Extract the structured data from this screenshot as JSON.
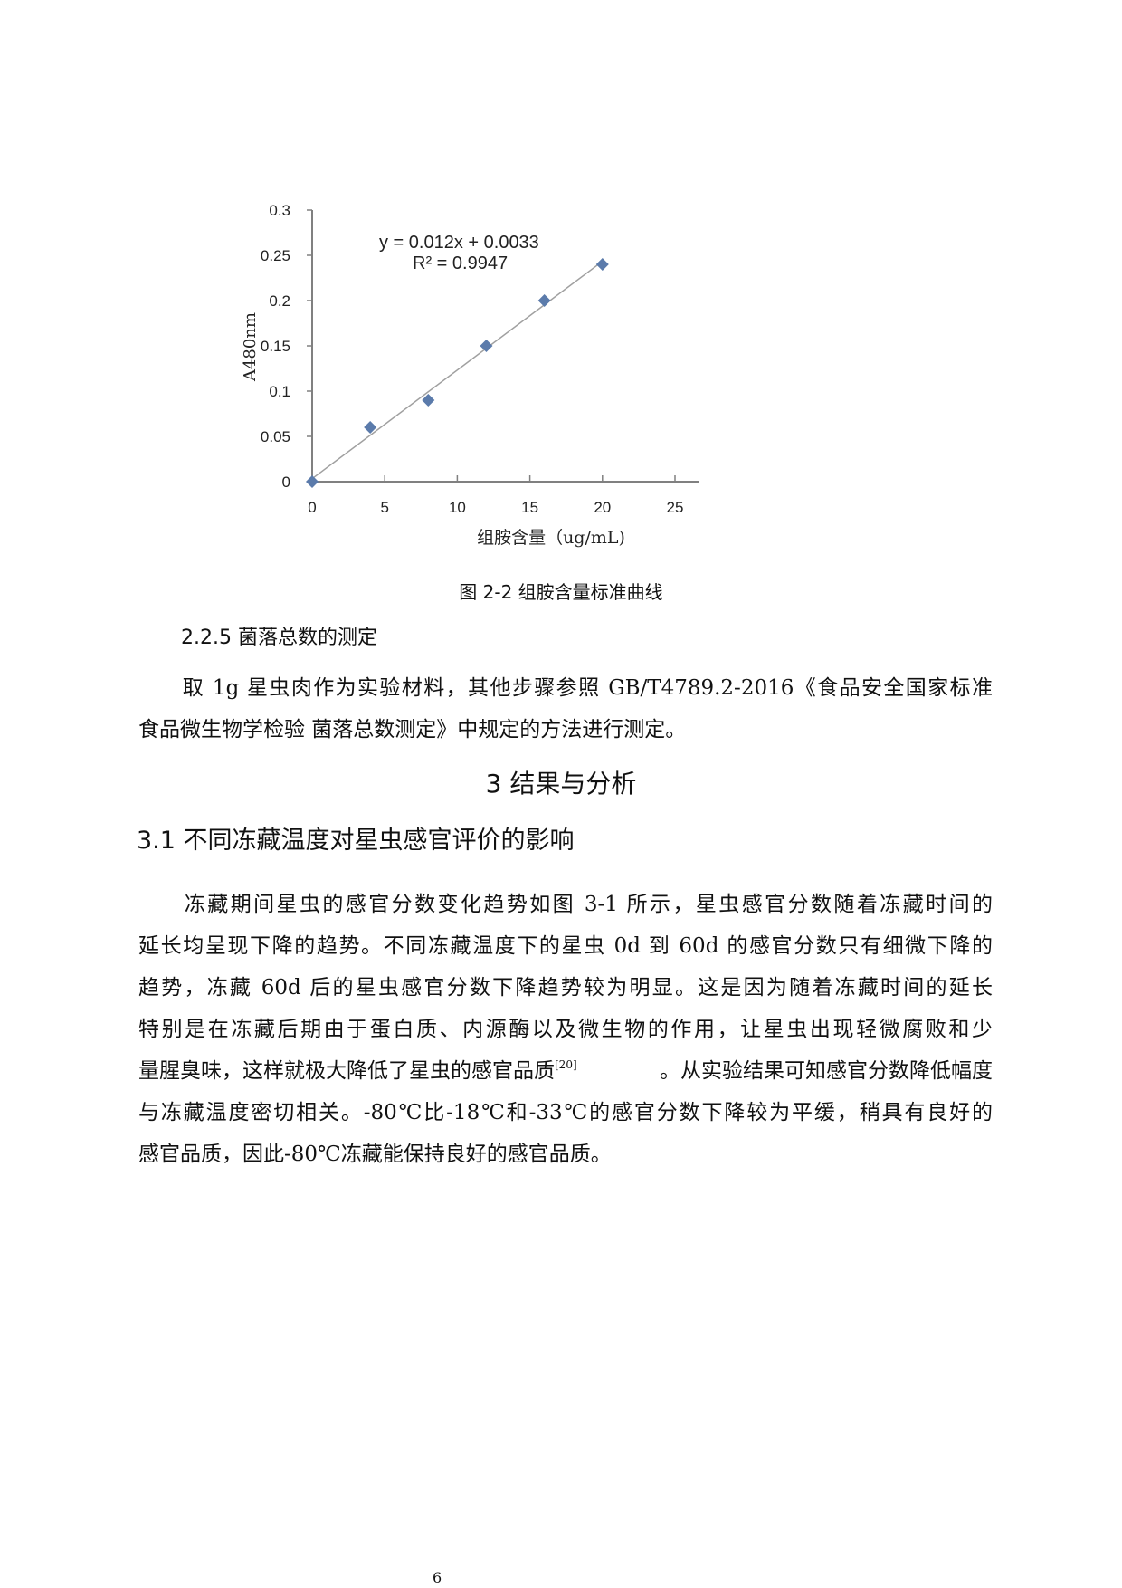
{
  "chart_data": {
    "type": "scatter",
    "xlabel": "组胺含量（ug/mL)",
    "ylabel": "A480nm",
    "xlim": [
      0,
      25
    ],
    "ylim": [
      0,
      0.3
    ],
    "x_ticks": [
      "0",
      "5",
      "10",
      "15",
      "20",
      "25"
    ],
    "y_ticks": [
      "0",
      "0.05",
      "0.1",
      "0.15",
      "0.2",
      "0.25",
      "0.3"
    ],
    "grid": false,
    "points": [
      {
        "x": 0,
        "y": 0
      },
      {
        "x": 4,
        "y": 0.06
      },
      {
        "x": 8,
        "y": 0.09
      },
      {
        "x": 12,
        "y": 0.15
      },
      {
        "x": 16,
        "y": 0.2
      },
      {
        "x": 20,
        "y": 0.24
      }
    ],
    "trendline": {
      "slope": 0.012,
      "intercept": 0.0033,
      "equation": "y = 0.012x + 0.0033",
      "r2": "R² = 0.9947"
    },
    "marker_color": "#5b7bab",
    "line_color": "#a0a0a0"
  },
  "figure_caption": "图 2-2  组胺含量标准曲线",
  "section_225": {
    "heading": "2.2.5  菌落总数的测定",
    "lines": [
      "　　取 1g 星虫肉作为实验材料，其他步骤参照 GB/T4789.2-2016《食品安全国家标准",
      "食品微生物学检验  菌落总数测定》中规定的方法进行测定。"
    ]
  },
  "section_3": {
    "heading": "3   结果与分析"
  },
  "section_31": {
    "heading": "3.1  不同冻藏温度对星虫感官评价的影响",
    "lines": [
      "　　冻藏期间星虫的感官分数变化趋势如图 3-1 所示，星虫感官分数随着冻藏时间的",
      "延长均呈现下降的趋势。不同冻藏温度下的星虫 0d 到 60d 的感官分数只有细微下降的",
      "趋势，冻藏 60d 后的星虫感官分数下降趋势较为明显。这是因为随着冻藏时间的延长",
      "特别是在冻藏后期由于蛋白质、内源酶以及微生物的作用，让星虫出现轻微腐败和少",
      "量腥臭味，这样就极大降低了星虫的感官品质",
      "。从实验结果可知感官分数降低幅度",
      "与冻藏温度密切相关。-80℃比-18℃和-33℃的感官分数下降较为平缓，稍具有良好的",
      "感官品质，因此-80℃冻藏能保持良好的感官品质。"
    ],
    "citation": "[20]"
  },
  "page_number": "6"
}
